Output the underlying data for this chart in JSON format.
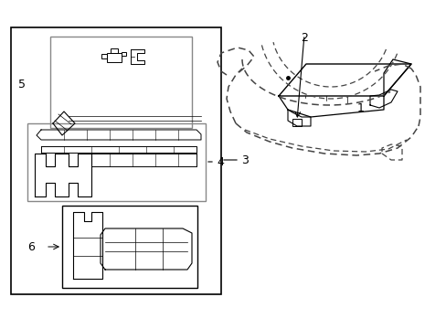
{
  "bg_color": "#ffffff",
  "line_color": "#000000",
  "gray_color": "#888888",
  "dashed_color": "#444444",
  "fig_w": 4.89,
  "fig_h": 3.6,
  "dpi": 100
}
